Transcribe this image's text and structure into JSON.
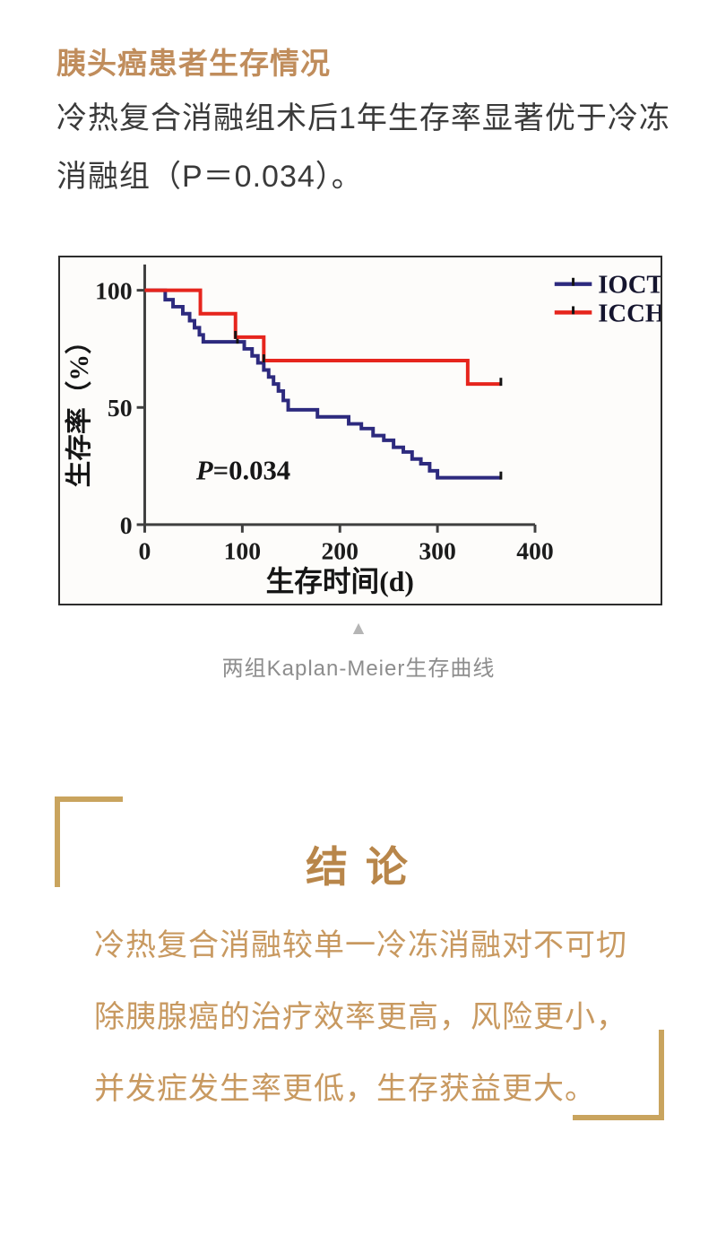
{
  "page": {
    "title": "胰头癌患者生存情况",
    "intro_lines": [
      "冷热复合消融组术后1年生存率显著优于冷冻",
      "消融组（P＝0.034）。"
    ],
    "triangle_icon": "▲",
    "figure_caption": "两组Kaplan-Meier生存曲线"
  },
  "conclusion": {
    "heading": "结 论",
    "lines": [
      "冷热复合消融较单一冷冻消融对不可切",
      "除胰腺癌的治疗效率更高，风险更小，",
      "并发症发生率更低，生存获益更大。"
    ]
  },
  "colors": {
    "title_gold": "#c08d5c",
    "heading_gold": "#b8864a",
    "bracket_gold": "#c9a45e",
    "conclusion_gold": "#c89960",
    "body_text": "#3a3a3a",
    "caption_gray": "#8d8d8d",
    "axis": "#3f3f3f",
    "ioct_navy": "#2d2a7e",
    "icch_red": "#e6251d"
  },
  "chart_data": {
    "type": "line",
    "subtype": "kaplan-meier-step",
    "title": "",
    "xlabel": "生存时间(d)",
    "ylabel": "生存率（%）",
    "xlim": [
      0,
      400
    ],
    "ylim": [
      0,
      100
    ],
    "xticks": [
      0,
      100,
      200,
      300,
      400
    ],
    "yticks": [
      0,
      50,
      100
    ],
    "grid": false,
    "legend_position": "top-right",
    "annotation": {
      "italic": "P",
      "rest": "=0.034"
    },
    "series": [
      {
        "name": "IOCT",
        "color": "#2d2a7e",
        "points": [
          [
            0,
            100
          ],
          [
            21,
            100
          ],
          [
            21,
            96
          ],
          [
            29,
            96
          ],
          [
            29,
            93
          ],
          [
            39,
            93
          ],
          [
            39,
            90
          ],
          [
            46,
            90
          ],
          [
            46,
            87
          ],
          [
            51,
            87
          ],
          [
            51,
            84
          ],
          [
            56,
            84
          ],
          [
            56,
            81
          ],
          [
            60,
            81
          ],
          [
            60,
            78
          ],
          [
            102,
            78
          ],
          [
            102,
            75
          ],
          [
            110,
            75
          ],
          [
            110,
            72
          ],
          [
            116,
            72
          ],
          [
            116,
            69
          ],
          [
            122,
            69
          ],
          [
            122,
            66
          ],
          [
            127,
            66
          ],
          [
            127,
            63
          ],
          [
            132,
            63
          ],
          [
            132,
            60
          ],
          [
            137,
            60
          ],
          [
            137,
            57
          ],
          [
            142,
            57
          ],
          [
            142,
            53
          ],
          [
            147,
            53
          ],
          [
            147,
            49
          ],
          [
            177,
            49
          ],
          [
            177,
            46
          ],
          [
            209,
            46
          ],
          [
            209,
            43
          ],
          [
            222,
            43
          ],
          [
            222,
            41
          ],
          [
            234,
            41
          ],
          [
            234,
            38
          ],
          [
            245,
            38
          ],
          [
            245,
            36
          ],
          [
            255,
            36
          ],
          [
            255,
            33
          ],
          [
            265,
            33
          ],
          [
            265,
            31
          ],
          [
            274,
            31
          ],
          [
            274,
            28
          ],
          [
            283,
            28
          ],
          [
            283,
            26
          ],
          [
            292,
            26
          ],
          [
            292,
            23
          ],
          [
            300,
            23
          ],
          [
            300,
            20
          ],
          [
            365,
            20
          ]
        ],
        "censor_days": [
          [
            95,
            78
          ],
          [
            365,
            20
          ]
        ]
      },
      {
        "name": "ICCH",
        "color": "#e6251d",
        "points": [
          [
            0,
            100
          ],
          [
            57,
            100
          ],
          [
            57,
            90
          ],
          [
            93,
            90
          ],
          [
            93,
            80
          ],
          [
            122,
            80
          ],
          [
            122,
            70
          ],
          [
            331,
            70
          ],
          [
            331,
            60
          ],
          [
            365,
            60
          ]
        ],
        "censor_days": [
          [
            93,
            80
          ],
          [
            122,
            70
          ],
          [
            365,
            60
          ]
        ]
      }
    ]
  }
}
